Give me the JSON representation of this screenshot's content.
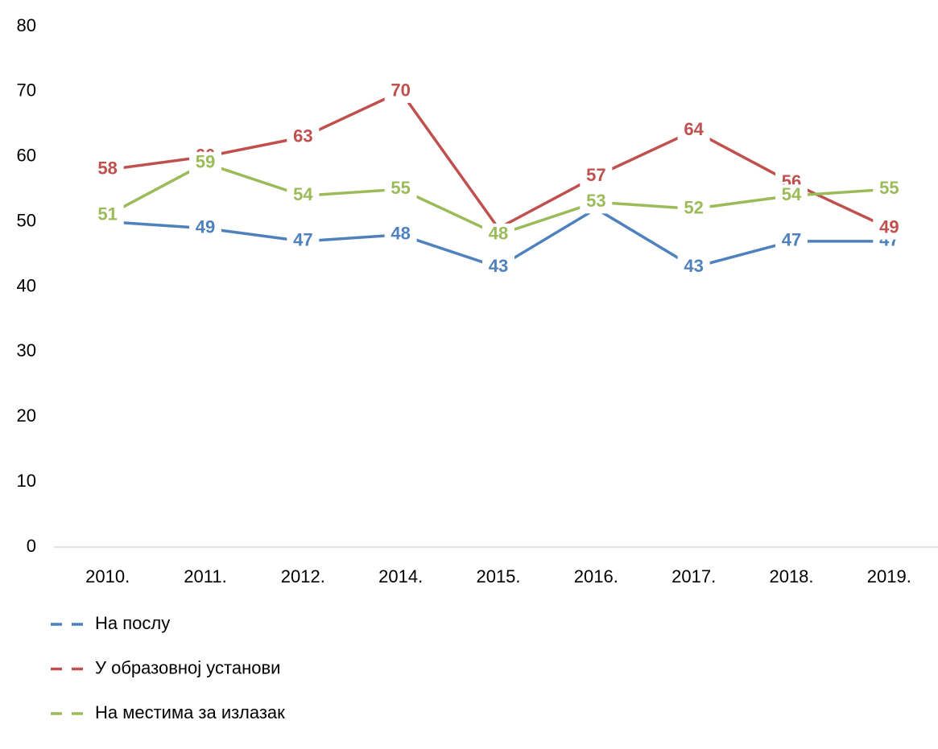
{
  "chart_data": {
    "type": "line",
    "categories": [
      "2010.",
      "2011.",
      "2012.",
      "2014.",
      "2015.",
      "2016.",
      "2017.",
      "2018.",
      "2019."
    ],
    "series": [
      {
        "name": "На послу",
        "color": "#4f81bd",
        "values": [
          50,
          49,
          47,
          48,
          43,
          52,
          43,
          47,
          47
        ],
        "value_labels": [
          "50",
          "49",
          "47",
          "48",
          "43",
          null,
          "43",
          "47",
          "47"
        ]
      },
      {
        "name": "У образовној установи",
        "color": "#c0504d",
        "values": [
          58,
          60,
          63,
          70,
          49,
          57,
          64,
          56,
          49
        ],
        "value_labels": [
          "58",
          "60",
          "63",
          "70",
          null,
          "57",
          "64",
          "56",
          "49"
        ]
      },
      {
        "name": "На местима за излазак",
        "color": "#9bbb59",
        "values": [
          51,
          59,
          54,
          55,
          48,
          53,
          52,
          54,
          55
        ],
        "value_labels": [
          "51",
          "59",
          "54",
          "55",
          "48",
          "53",
          "52",
          "54",
          "55"
        ]
      }
    ],
    "ylim": [
      0,
      80
    ],
    "yticks": [
      0,
      10,
      20,
      30,
      40,
      50,
      60,
      70,
      80
    ],
    "grid": false,
    "legend": "bottom"
  }
}
